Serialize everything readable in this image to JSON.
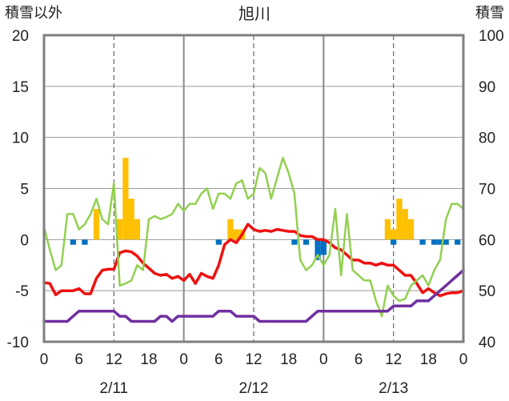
{
  "chart_data": {
    "type": "bar+line",
    "title": "旭川",
    "left_axis_label": "積雪以外",
    "right_axis_label": "積雪",
    "left_ylim": [
      -10,
      20
    ],
    "right_ylim": [
      40,
      100
    ],
    "left_ticks": [
      "20",
      "15",
      "10",
      "5",
      "0",
      "-5",
      "-10"
    ],
    "right_ticks": [
      "100",
      "90",
      "80",
      "70",
      "60",
      "50",
      "40"
    ],
    "xlim_hours": [
      0,
      72
    ],
    "hour_ticks": [
      "0",
      "6",
      "12",
      "18",
      "0",
      "6",
      "12",
      "18",
      "0",
      "6",
      "12",
      "18",
      "0"
    ],
    "day_labels": [
      "2/11",
      "2/12",
      "2/13"
    ],
    "grid": "dashed verticals at 12h, solid day dividers",
    "colors": {
      "frame": "#7f7f7f",
      "snowfall_bar": "#ffc000",
      "depth_change_bar": "#0070c0",
      "red_line": "#ee1111",
      "green_line": "#92d050",
      "purple_line": "#7030a0"
    },
    "snowfall_bars": [
      {
        "h": 9,
        "v": 3
      },
      {
        "h": 13,
        "v": 2
      },
      {
        "h": 14,
        "v": 8
      },
      {
        "h": 15,
        "v": 4
      },
      {
        "h": 16,
        "v": 2
      },
      {
        "h": 32,
        "v": 2
      },
      {
        "h": 33,
        "v": 1
      },
      {
        "h": 34,
        "v": 1
      },
      {
        "h": 59,
        "v": 2
      },
      {
        "h": 60,
        "v": 1
      },
      {
        "h": 61,
        "v": 4
      },
      {
        "h": 62,
        "v": 3
      },
      {
        "h": 63,
        "v": 2
      }
    ],
    "depth_change_bars": [
      {
        "h": 5,
        "v": -0.5
      },
      {
        "h": 7,
        "v": -0.5
      },
      {
        "h": 30,
        "v": -0.5
      },
      {
        "h": 43,
        "v": -0.5
      },
      {
        "h": 45,
        "v": -0.5
      },
      {
        "h": 47,
        "v": -2
      },
      {
        "h": 48,
        "v": -1.5
      },
      {
        "h": 60,
        "v": -0.5
      },
      {
        "h": 65,
        "v": -0.5
      },
      {
        "h": 67,
        "v": -0.5
      },
      {
        "h": 68,
        "v": -0.5
      },
      {
        "h": 69,
        "v": -0.5
      },
      {
        "h": 71,
        "v": -0.5
      }
    ],
    "series": [
      {
        "color": "red",
        "x": [
          0,
          1,
          2,
          3,
          4,
          5,
          6,
          7,
          8,
          9,
          10,
          11,
          12,
          13,
          14,
          15,
          16,
          17,
          18,
          19,
          20,
          21,
          22,
          23,
          24,
          25,
          26,
          27,
          28,
          29,
          30,
          31,
          32,
          33,
          34,
          35,
          36,
          37,
          38,
          39,
          40,
          41,
          42,
          43,
          44,
          45,
          46,
          47,
          48,
          49,
          50,
          51,
          52,
          53,
          54,
          55,
          56,
          57,
          58,
          59,
          60,
          61,
          62,
          63,
          64,
          65,
          66,
          67,
          68,
          69,
          70,
          71,
          72
        ],
        "y": [
          -4.2,
          -4.3,
          -5.4,
          -5.0,
          -5.0,
          -5.0,
          -4.8,
          -5.3,
          -5.3,
          -3.8,
          -3.0,
          -2.9,
          -2.9,
          -1.3,
          -1.1,
          -1.2,
          -1.6,
          -2.3,
          -2.8,
          -3.3,
          -3.5,
          -3.4,
          -3.8,
          -3.6,
          -4.0,
          -3.4,
          -4.3,
          -3.3,
          -3.6,
          -3.8,
          -2.5,
          -0.5,
          0,
          -0.3,
          0.5,
          1.5,
          1.0,
          0.8,
          0.9,
          0.8,
          1.0,
          0.9,
          0.8,
          0.8,
          0.4,
          0.3,
          0.3,
          0.0,
          0.0,
          -0.3,
          -0.8,
          -1.0,
          -1.5,
          -2.0,
          -2.0,
          -2.3,
          -2.3,
          -2.5,
          -2.3,
          -2.5,
          -2.5,
          -3.0,
          -3.5,
          -3.5,
          -4.3,
          -5.2,
          -4.8,
          -5.2,
          -5.5,
          -5.3,
          -5.2,
          -5.2,
          -5.0
        ]
      },
      {
        "color": "green",
        "x": [
          0,
          1,
          2,
          3,
          4,
          5,
          6,
          7,
          8,
          9,
          10,
          11,
          12,
          13,
          14,
          15,
          16,
          17,
          18,
          19,
          20,
          21,
          22,
          23,
          24,
          25,
          26,
          27,
          28,
          29,
          30,
          31,
          32,
          33,
          34,
          35,
          36,
          37,
          38,
          39,
          40,
          41,
          42,
          43,
          44,
          45,
          46,
          47,
          48,
          49,
          50,
          51,
          52,
          53,
          54,
          55,
          56,
          57,
          58,
          59,
          60,
          61,
          62,
          63,
          64,
          65,
          66,
          67,
          68,
          69,
          70,
          71,
          72
        ],
        "y": [
          1.2,
          -1.0,
          -3.0,
          -2.5,
          2.5,
          2.5,
          1.0,
          1.5,
          2.5,
          4.0,
          2.0,
          1.5,
          5.5,
          -4.5,
          -4.3,
          -4.0,
          -2.5,
          -3.0,
          2.0,
          2.3,
          2.0,
          2.2,
          2.5,
          3.5,
          2.8,
          3.5,
          3.5,
          4.5,
          5.0,
          3.0,
          4.5,
          4.5,
          4.0,
          5.5,
          5.8,
          4.0,
          4.5,
          7.0,
          6.5,
          4.0,
          6.0,
          8.0,
          6.5,
          4.5,
          -2.0,
          -3.0,
          -2.5,
          -1.5,
          -2.5,
          -1.5,
          3.0,
          -3.5,
          2.5,
          -3.0,
          -3.5,
          -4.0,
          -4.0,
          -6.0,
          -7.5,
          -4.5,
          -5.5,
          -6.0,
          -5.8,
          -4.5,
          -4.0,
          -3.5,
          -4.5,
          -3.0,
          -2.0,
          2.0,
          3.5,
          3.5,
          3.0
        ]
      },
      {
        "color": "purple",
        "x": [
          0,
          1,
          2,
          3,
          4,
          5,
          6,
          7,
          8,
          9,
          10,
          11,
          12,
          13,
          14,
          15,
          16,
          17,
          18,
          19,
          20,
          21,
          22,
          23,
          24,
          25,
          26,
          27,
          28,
          29,
          30,
          31,
          32,
          33,
          34,
          35,
          36,
          37,
          38,
          39,
          40,
          41,
          42,
          43,
          44,
          45,
          46,
          47,
          48,
          49,
          50,
          51,
          52,
          53,
          54,
          55,
          56,
          57,
          58,
          59,
          60,
          61,
          62,
          63,
          64,
          65,
          66,
          67,
          68,
          69,
          70,
          71,
          72
        ],
        "y": [
          -8,
          -8,
          -8,
          -8,
          -8,
          -7.5,
          -7,
          -7,
          -7,
          -7,
          -7,
          -7,
          -7,
          -7.5,
          -7.5,
          -8,
          -8,
          -8,
          -8,
          -8,
          -7.5,
          -7.5,
          -8,
          -7.5,
          -7.5,
          -7.5,
          -7.5,
          -7.5,
          -7.5,
          -7.5,
          -7,
          -7,
          -7,
          -7.5,
          -7.5,
          -7.5,
          -7.5,
          -8,
          -8,
          -8,
          -8,
          -8,
          -8,
          -8,
          -8,
          -8,
          -7.5,
          -7,
          -7,
          -7,
          -7,
          -7,
          -7,
          -7,
          -7,
          -7,
          -7,
          -7,
          -7,
          -7,
          -6.5,
          -6.5,
          -6.5,
          -6.5,
          -6,
          -6,
          -6,
          -5.5,
          -5,
          -4.5,
          -4,
          -3.5,
          -3
        ]
      }
    ]
  }
}
